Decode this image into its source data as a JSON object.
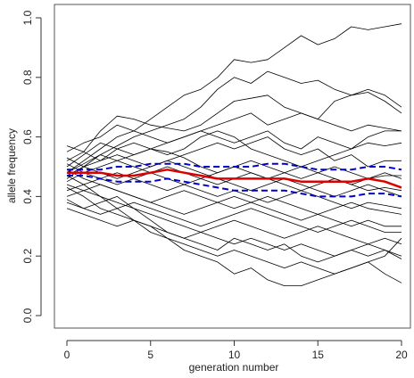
{
  "chart_data": {
    "type": "line",
    "xlabel": "generation number",
    "ylabel": "allele frequency",
    "xlim": [
      0,
      20
    ],
    "ylim": [
      0,
      1
    ],
    "xticks": [
      0,
      5,
      10,
      15,
      20
    ],
    "yticks": [
      0.0,
      0.2,
      0.4,
      0.6,
      0.8,
      1.0
    ],
    "x": [
      0,
      1,
      2,
      3,
      4,
      5,
      6,
      7,
      8,
      9,
      10,
      11,
      12,
      13,
      14,
      15,
      16,
      17,
      18,
      19,
      20
    ],
    "series": [
      {
        "color": "#000000",
        "values": [
          0.48,
          0.52,
          0.56,
          0.6,
          0.62,
          0.66,
          0.7,
          0.74,
          0.76,
          0.8,
          0.86,
          0.85,
          0.86,
          0.9,
          0.94,
          0.91,
          0.93,
          0.97,
          0.96,
          0.97,
          0.98
        ]
      },
      {
        "color": "#000000",
        "values": [
          0.47,
          0.5,
          0.54,
          0.57,
          0.6,
          0.62,
          0.64,
          0.66,
          0.7,
          0.76,
          0.8,
          0.78,
          0.82,
          0.8,
          0.78,
          0.79,
          0.76,
          0.74,
          0.76,
          0.74,
          0.7
        ]
      },
      {
        "color": "#000000",
        "values": [
          0.52,
          0.55,
          0.62,
          0.67,
          0.66,
          0.64,
          0.63,
          0.62,
          0.64,
          0.68,
          0.72,
          0.73,
          0.74,
          0.7,
          0.68,
          0.66,
          0.72,
          0.74,
          0.75,
          0.72,
          0.68
        ]
      },
      {
        "color": "#000000",
        "values": [
          0.55,
          0.58,
          0.6,
          0.64,
          0.62,
          0.6,
          0.58,
          0.6,
          0.62,
          0.64,
          0.66,
          0.68,
          0.64,
          0.66,
          0.68,
          0.66,
          0.64,
          0.62,
          0.64,
          0.63,
          0.62
        ]
      },
      {
        "color": "#000000",
        "values": [
          0.5,
          0.54,
          0.58,
          0.56,
          0.54,
          0.56,
          0.58,
          0.6,
          0.62,
          0.6,
          0.58,
          0.6,
          0.62,
          0.58,
          0.56,
          0.6,
          0.58,
          0.56,
          0.6,
          0.62,
          0.62
        ]
      },
      {
        "color": "#000000",
        "values": [
          0.46,
          0.5,
          0.52,
          0.56,
          0.58,
          0.56,
          0.54,
          0.56,
          0.6,
          0.62,
          0.6,
          0.56,
          0.54,
          0.52,
          0.5,
          0.52,
          0.54,
          0.56,
          0.58,
          0.57,
          0.58
        ]
      },
      {
        "color": "#000000",
        "values": [
          0.57,
          0.55,
          0.52,
          0.54,
          0.52,
          0.5,
          0.52,
          0.54,
          0.56,
          0.58,
          0.56,
          0.58,
          0.6,
          0.56,
          0.54,
          0.56,
          0.52,
          0.54,
          0.5,
          0.52,
          0.52
        ]
      },
      {
        "color": "#000000",
        "values": [
          0.45,
          0.48,
          0.5,
          0.52,
          0.54,
          0.56,
          0.55,
          0.53,
          0.5,
          0.48,
          0.5,
          0.52,
          0.5,
          0.48,
          0.46,
          0.48,
          0.5,
          0.48,
          0.46,
          0.47,
          0.47
        ]
      },
      {
        "color": "#000000",
        "values": [
          0.42,
          0.44,
          0.46,
          0.48,
          0.46,
          0.48,
          0.5,
          0.48,
          0.46,
          0.44,
          0.46,
          0.48,
          0.46,
          0.44,
          0.42,
          0.44,
          0.46,
          0.44,
          0.42,
          0.43,
          0.42
        ]
      },
      {
        "color": "#000000",
        "values": [
          0.51,
          0.48,
          0.46,
          0.44,
          0.46,
          0.44,
          0.42,
          0.44,
          0.42,
          0.4,
          0.42,
          0.4,
          0.38,
          0.4,
          0.42,
          0.4,
          0.38,
          0.36,
          0.38,
          0.37,
          0.36
        ]
      },
      {
        "color": "#000000",
        "values": [
          0.4,
          0.42,
          0.44,
          0.42,
          0.4,
          0.38,
          0.4,
          0.42,
          0.4,
          0.38,
          0.36,
          0.38,
          0.4,
          0.38,
          0.36,
          0.34,
          0.36,
          0.38,
          0.36,
          0.35,
          0.34
        ]
      },
      {
        "color": "#000000",
        "values": [
          0.49,
          0.46,
          0.44,
          0.42,
          0.4,
          0.38,
          0.36,
          0.34,
          0.36,
          0.38,
          0.4,
          0.38,
          0.36,
          0.34,
          0.32,
          0.34,
          0.32,
          0.3,
          0.32,
          0.3,
          0.3
        ]
      },
      {
        "color": "#000000",
        "values": [
          0.38,
          0.36,
          0.34,
          0.36,
          0.38,
          0.36,
          0.34,
          0.32,
          0.3,
          0.32,
          0.34,
          0.36,
          0.34,
          0.32,
          0.3,
          0.28,
          0.3,
          0.32,
          0.3,
          0.28,
          0.28
        ]
      },
      {
        "color": "#000000",
        "values": [
          0.44,
          0.42,
          0.4,
          0.38,
          0.36,
          0.34,
          0.32,
          0.3,
          0.28,
          0.3,
          0.32,
          0.3,
          0.28,
          0.26,
          0.28,
          0.3,
          0.28,
          0.26,
          0.24,
          0.26,
          0.24
        ]
      },
      {
        "color": "#000000",
        "values": [
          0.36,
          0.34,
          0.32,
          0.3,
          0.32,
          0.3,
          0.28,
          0.26,
          0.28,
          0.26,
          0.24,
          0.26,
          0.24,
          0.22,
          0.24,
          0.22,
          0.2,
          0.22,
          0.2,
          0.22,
          0.2
        ]
      },
      {
        "color": "#000000",
        "values": [
          0.43,
          0.4,
          0.36,
          0.34,
          0.32,
          0.28,
          0.26,
          0.24,
          0.22,
          0.2,
          0.22,
          0.2,
          0.18,
          0.16,
          0.18,
          0.16,
          0.14,
          0.16,
          0.18,
          0.14,
          0.11
        ]
      },
      {
        "color": "#000000",
        "values": [
          0.47,
          0.44,
          0.4,
          0.36,
          0.32,
          0.3,
          0.26,
          0.22,
          0.2,
          0.18,
          0.14,
          0.16,
          0.12,
          0.1,
          0.1,
          0.12,
          0.14,
          0.16,
          0.18,
          0.2,
          0.26
        ]
      },
      {
        "color": "#000000",
        "values": [
          0.39,
          0.36,
          0.38,
          0.4,
          0.36,
          0.32,
          0.28,
          0.26,
          0.24,
          0.22,
          0.26,
          0.24,
          0.22,
          0.24,
          0.2,
          0.18,
          0.2,
          0.22,
          0.24,
          0.22,
          0.19
        ]
      },
      {
        "color": "#000000",
        "values": [
          0.53,
          0.5,
          0.48,
          0.46,
          0.48,
          0.5,
          0.52,
          0.5,
          0.48,
          0.46,
          0.44,
          0.42,
          0.44,
          0.46,
          0.44,
          0.42,
          0.4,
          0.42,
          0.44,
          0.42,
          0.4
        ]
      },
      {
        "color": "#000000",
        "values": [
          0.48,
          0.51,
          0.54,
          0.52,
          0.5,
          0.48,
          0.46,
          0.44,
          0.46,
          0.48,
          0.5,
          0.48,
          0.46,
          0.48,
          0.5,
          0.48,
          0.46,
          0.44,
          0.46,
          0.48,
          0.46
        ]
      },
      {
        "color": "#0000cc",
        "style": "dashed",
        "width": 2,
        "values": [
          0.49,
          0.49,
          0.49,
          0.5,
          0.5,
          0.51,
          0.51,
          0.51,
          0.5,
          0.5,
          0.5,
          0.5,
          0.51,
          0.51,
          0.5,
          0.49,
          0.49,
          0.49,
          0.5,
          0.5,
          0.49
        ]
      },
      {
        "color": "#dd0000",
        "style": "solid",
        "width": 2.5,
        "values": [
          0.48,
          0.48,
          0.48,
          0.47,
          0.47,
          0.48,
          0.49,
          0.48,
          0.47,
          0.46,
          0.46,
          0.46,
          0.46,
          0.46,
          0.45,
          0.45,
          0.45,
          0.45,
          0.46,
          0.45,
          0.43
        ]
      },
      {
        "color": "#0000cc",
        "style": "dashed",
        "width": 2,
        "values": [
          0.47,
          0.47,
          0.46,
          0.45,
          0.45,
          0.45,
          0.46,
          0.45,
          0.44,
          0.43,
          0.42,
          0.42,
          0.42,
          0.42,
          0.41,
          0.4,
          0.4,
          0.4,
          0.41,
          0.41,
          0.4
        ]
      }
    ]
  }
}
